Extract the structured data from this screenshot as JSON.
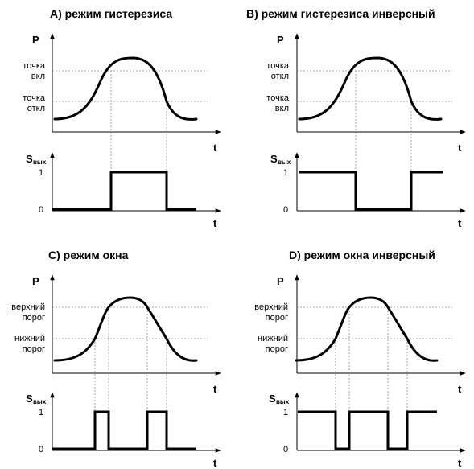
{
  "axes": {
    "p": "P",
    "t": "t",
    "s": "S",
    "s_sub": "вых",
    "one": "1",
    "zero": "0"
  },
  "panels": [
    {
      "title": "A) режим гистерезиса",
      "upper": [
        "точка",
        "вкл"
      ],
      "lower": [
        "точка",
        "откл"
      ],
      "signal": [
        0,
        1,
        0
      ]
    },
    {
      "title": "B) режим гистерезиса инверсный",
      "upper": [
        "точка",
        "откл"
      ],
      "lower": [
        "точка",
        "вкл"
      ],
      "signal": [
        1,
        0,
        1
      ]
    },
    {
      "title": "C) режим окна",
      "upper": [
        "верхний",
        "порог"
      ],
      "lower": [
        "нижний",
        "порог"
      ],
      "signal": [
        0,
        1,
        0,
        1,
        0
      ]
    },
    {
      "title": "D) режим окна инверсный",
      "upper": [
        "верхний",
        "порог"
      ],
      "lower": [
        "нижний",
        "порог"
      ],
      "signal": [
        1,
        0,
        1,
        0,
        1
      ]
    }
  ]
}
